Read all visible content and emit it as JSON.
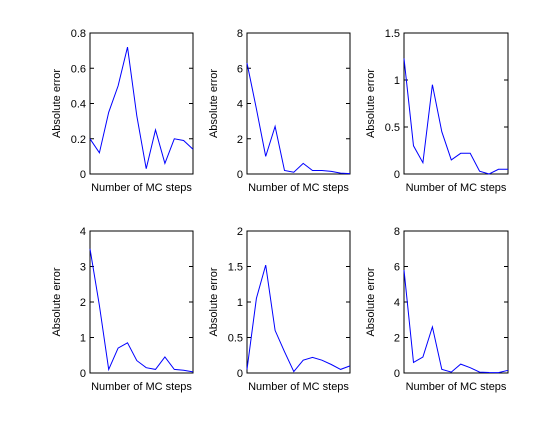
{
  "figure": {
    "background": "#ffffff"
  },
  "chart_data": [
    {
      "type": "line",
      "xlabel": "Number of MC steps",
      "ylabel": "Absolute error",
      "ylim": [
        0,
        0.8
      ],
      "yticks": [
        0,
        0.2,
        0.4,
        0.6,
        0.8
      ],
      "ytick_labels": [
        "0",
        "0.2",
        "0.4",
        "0.6",
        "0.8"
      ],
      "grid": false,
      "line_color": "#0000ff",
      "values": [
        0.2,
        0.12,
        0.35,
        0.5,
        0.72,
        0.33,
        0.03,
        0.25,
        0.06,
        0.2,
        0.19,
        0.14
      ]
    },
    {
      "type": "line",
      "xlabel": "Number of MC steps",
      "ylabel": "Absolute error",
      "ylim": [
        0,
        8
      ],
      "yticks": [
        0,
        2,
        4,
        6,
        8
      ],
      "ytick_labels": [
        "0",
        "2",
        "4",
        "6",
        "8"
      ],
      "grid": false,
      "line_color": "#0000ff",
      "values": [
        6.3,
        3.7,
        1.0,
        2.7,
        0.2,
        0.1,
        0.6,
        0.2,
        0.2,
        0.15,
        0.05,
        0.02
      ]
    },
    {
      "type": "line",
      "xlabel": "Number of MC steps",
      "ylabel": "Absolute error",
      "ylim": [
        0,
        1.5
      ],
      "yticks": [
        0,
        0.5,
        1,
        1.5
      ],
      "ytick_labels": [
        "0",
        "0.5",
        "1",
        "1.5"
      ],
      "grid": false,
      "line_color": "#0000ff",
      "values": [
        1.23,
        0.3,
        0.12,
        0.95,
        0.45,
        0.15,
        0.22,
        0.22,
        0.03,
        0.0,
        0.05,
        0.05
      ]
    },
    {
      "type": "line",
      "xlabel": "Number of MC steps",
      "ylabel": "Absolute error",
      "ylim": [
        0,
        4
      ],
      "yticks": [
        0,
        1,
        2,
        3,
        4
      ],
      "ytick_labels": [
        "0",
        "1",
        "2",
        "3",
        "4"
      ],
      "grid": false,
      "line_color": "#0000ff",
      "values": [
        3.5,
        1.9,
        0.1,
        0.7,
        0.85,
        0.35,
        0.15,
        0.1,
        0.45,
        0.1,
        0.08,
        0.03
      ]
    },
    {
      "type": "line",
      "xlabel": "Number of MC steps",
      "ylabel": "Absolute error",
      "ylim": [
        0,
        2
      ],
      "yticks": [
        0,
        0.5,
        1,
        1.5,
        2
      ],
      "ytick_labels": [
        "0",
        "0.5",
        "1",
        "1.5",
        "2"
      ],
      "grid": false,
      "line_color": "#0000ff",
      "values": [
        0.05,
        1.05,
        1.52,
        0.6,
        0.3,
        0.02,
        0.18,
        0.22,
        0.18,
        0.12,
        0.05,
        0.1
      ]
    },
    {
      "type": "line",
      "xlabel": "Number of MC steps",
      "ylabel": "Absolute error",
      "ylim": [
        0,
        8
      ],
      "yticks": [
        0,
        2,
        4,
        6,
        8
      ],
      "ytick_labels": [
        "0",
        "2",
        "4",
        "6",
        "8"
      ],
      "grid": false,
      "line_color": "#0000ff",
      "values": [
        5.8,
        0.6,
        0.9,
        2.6,
        0.2,
        0.05,
        0.5,
        0.3,
        0.05,
        0.03,
        0.02,
        0.15
      ]
    }
  ]
}
